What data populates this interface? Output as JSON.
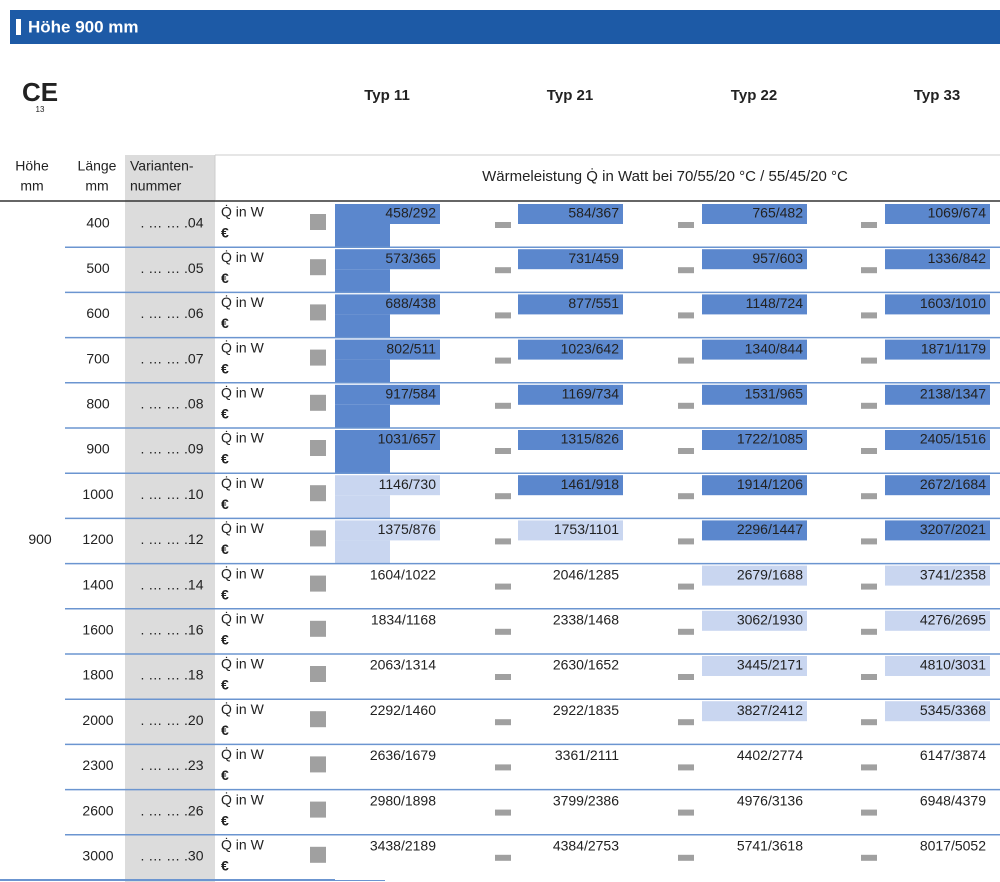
{
  "header": {
    "title": "Höhe 900 mm"
  },
  "ce_mark": {
    "symbol": "CE",
    "number": "13"
  },
  "table": {
    "type_headers": [
      "Typ 11",
      "Typ 21",
      "Typ 22",
      "Typ 33"
    ],
    "column_headers": {
      "height": [
        "Höhe",
        "mm"
      ],
      "length": [
        "Länge",
        "mm"
      ],
      "variant": [
        "Varianten-",
        "nummer"
      ]
    },
    "subheader": "Wärmeleistung Q̇ in Watt bei 70/55/20 °C / 55/45/20 °C",
    "height": "900",
    "row_labels": {
      "output": "Q̇ in W",
      "price": "€"
    },
    "rows": [
      {
        "length": "400",
        "variant": ". … … .04",
        "values": [
          "458/292",
          "584/367",
          "765/482",
          "1069/674"
        ],
        "shades": [
          "#5b87cd",
          "#5b87cd",
          "#5b87cd",
          "#5b87cd"
        ]
      },
      {
        "length": "500",
        "variant": ". … … .05",
        "values": [
          "573/365",
          "731/459",
          "957/603",
          "1336/842"
        ],
        "shades": [
          "#5b87cd",
          "#5b87cd",
          "#5b87cd",
          "#5b87cd"
        ]
      },
      {
        "length": "600",
        "variant": ". … … .06",
        "values": [
          "688/438",
          "877/551",
          "1148/724",
          "1603/1010"
        ],
        "shades": [
          "#5b87cd",
          "#5b87cd",
          "#5b87cd",
          "#5b87cd"
        ]
      },
      {
        "length": "700",
        "variant": ". … … .07",
        "values": [
          "802/511",
          "1023/642",
          "1340/844",
          "1871/1179"
        ],
        "shades": [
          "#5b87cd",
          "#5b87cd",
          "#5b87cd",
          "#5b87cd"
        ]
      },
      {
        "length": "800",
        "variant": ". … … .08",
        "values": [
          "917/584",
          "1169/734",
          "1531/965",
          "2138/1347"
        ],
        "shades": [
          "#5b87cd",
          "#5b87cd",
          "#5b87cd",
          "#5b87cd"
        ]
      },
      {
        "length": "900",
        "variant": ". … … .09",
        "values": [
          "1031/657",
          "1315/826",
          "1722/1085",
          "2405/1516"
        ],
        "shades": [
          "#5b87cd",
          "#5b87cd",
          "#5b87cd",
          "#5b87cd"
        ]
      },
      {
        "length": "1000",
        "variant": ". … … .10",
        "values": [
          "1146/730",
          "1461/918",
          "1914/1206",
          "2672/1684"
        ],
        "shades": [
          "#c9d6f0",
          "#5b87cd",
          "#5b87cd",
          "#5b87cd"
        ]
      },
      {
        "length": "1200",
        "variant": ". … … .12",
        "values": [
          "1375/876",
          "1753/1101",
          "2296/1447",
          "3207/2021"
        ],
        "shades": [
          "#c9d6f0",
          "#c9d6f0",
          "#5b87cd",
          "#5b87cd"
        ]
      },
      {
        "length": "1400",
        "variant": ". … … .14",
        "values": [
          "1604/1022",
          "2046/1285",
          "2679/1688",
          "3741/2358"
        ],
        "shades": [
          "#ffffff",
          "#ffffff",
          "#c9d6f0",
          "#c9d6f0"
        ]
      },
      {
        "length": "1600",
        "variant": ". … … .16",
        "values": [
          "1834/1168",
          "2338/1468",
          "3062/1930",
          "4276/2695"
        ],
        "shades": [
          "#ffffff",
          "#ffffff",
          "#c9d6f0",
          "#c9d6f0"
        ]
      },
      {
        "length": "1800",
        "variant": ". … … .18",
        "values": [
          "2063/1314",
          "2630/1652",
          "3445/2171",
          "4810/3031"
        ],
        "shades": [
          "#ffffff",
          "#ffffff",
          "#c9d6f0",
          "#c9d6f0"
        ]
      },
      {
        "length": "2000",
        "variant": ". … … .20",
        "values": [
          "2292/1460",
          "2922/1835",
          "3827/2412",
          "5345/3368"
        ],
        "shades": [
          "#ffffff",
          "#ffffff",
          "#c9d6f0",
          "#c9d6f0"
        ]
      },
      {
        "length": "2300",
        "variant": ". … … .23",
        "values": [
          "2636/1679",
          "3361/2111",
          "4402/2774",
          "6147/3874"
        ],
        "shades": [
          "#ffffff",
          "#ffffff",
          "#ffffff",
          "#ffffff"
        ]
      },
      {
        "length": "2600",
        "variant": ". … … .26",
        "values": [
          "2980/1898",
          "3799/2386",
          "4976/3136",
          "6948/4379"
        ],
        "shades": [
          "#ffffff",
          "#ffffff",
          "#ffffff",
          "#ffffff"
        ]
      },
      {
        "length": "3000",
        "variant": ". … … .30",
        "values": [
          "3438/2189",
          "4384/2753",
          "5741/3618",
          "8017/5052"
        ],
        "shades": [
          "#ffffff",
          "#ffffff",
          "#ffffff",
          "#ffffff"
        ]
      }
    ]
  }
}
